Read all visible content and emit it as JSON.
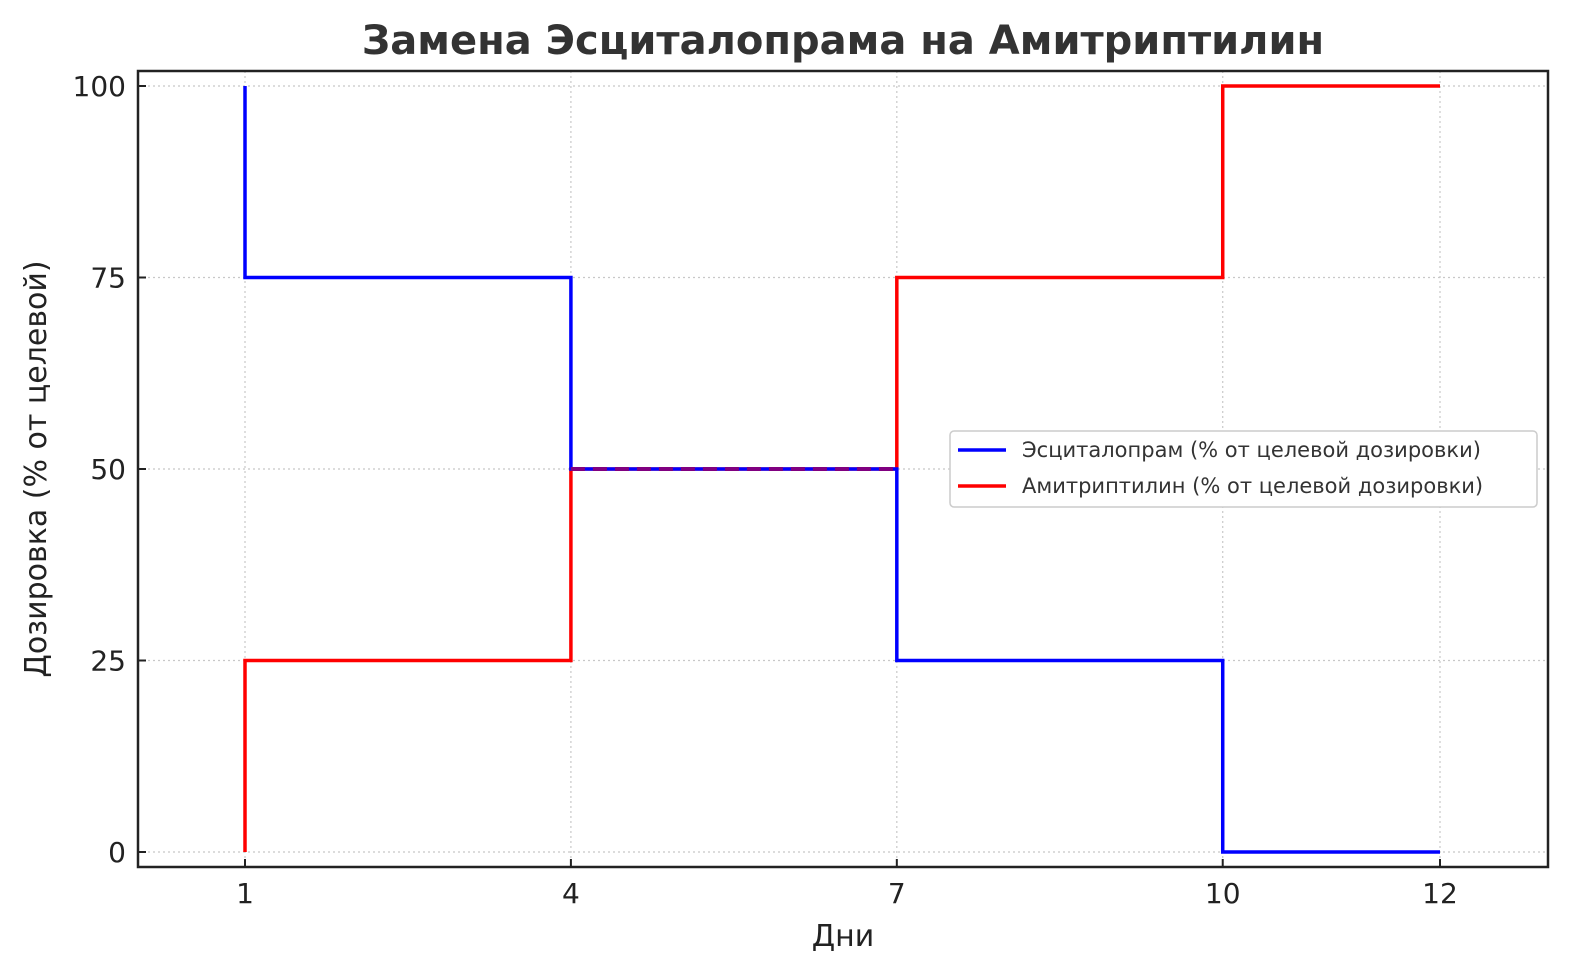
{
  "chart_data": {
    "type": "line",
    "step": true,
    "title": "Замена Эсциталопрама на Амитриптилин",
    "xlabel": "Дни",
    "ylabel": "Дозировка (% от целевой)",
    "xlim": [
      -0.0,
      13.0
    ],
    "ylim": [
      -2,
      102
    ],
    "xticks": [
      1,
      4,
      7,
      10,
      12
    ],
    "yticks": [
      0,
      25,
      50,
      75,
      100
    ],
    "grid": true,
    "legend_position": "center-right",
    "series": [
      {
        "name": "Эсциталопрам (% от целевой дозировки)",
        "color": "#0000ff",
        "points": [
          [
            1,
            100
          ],
          [
            1,
            75
          ],
          [
            4,
            75
          ],
          [
            4,
            50
          ],
          [
            7,
            50
          ],
          [
            7,
            25
          ],
          [
            10,
            25
          ],
          [
            10,
            0
          ],
          [
            12,
            0
          ]
        ]
      },
      {
        "name": "Амитриптилин (% от целевой дозировки)",
        "color": "#ff0000",
        "points": [
          [
            1,
            0
          ],
          [
            1,
            25
          ],
          [
            4,
            25
          ],
          [
            4,
            50
          ],
          [
            7,
            50
          ],
          [
            7,
            75
          ],
          [
            10,
            75
          ],
          [
            10,
            100
          ],
          [
            12,
            100
          ]
        ]
      }
    ],
    "overlap_segment": {
      "x": [
        4,
        7
      ],
      "y": 50,
      "color": "#800080",
      "style": "dashed"
    }
  }
}
